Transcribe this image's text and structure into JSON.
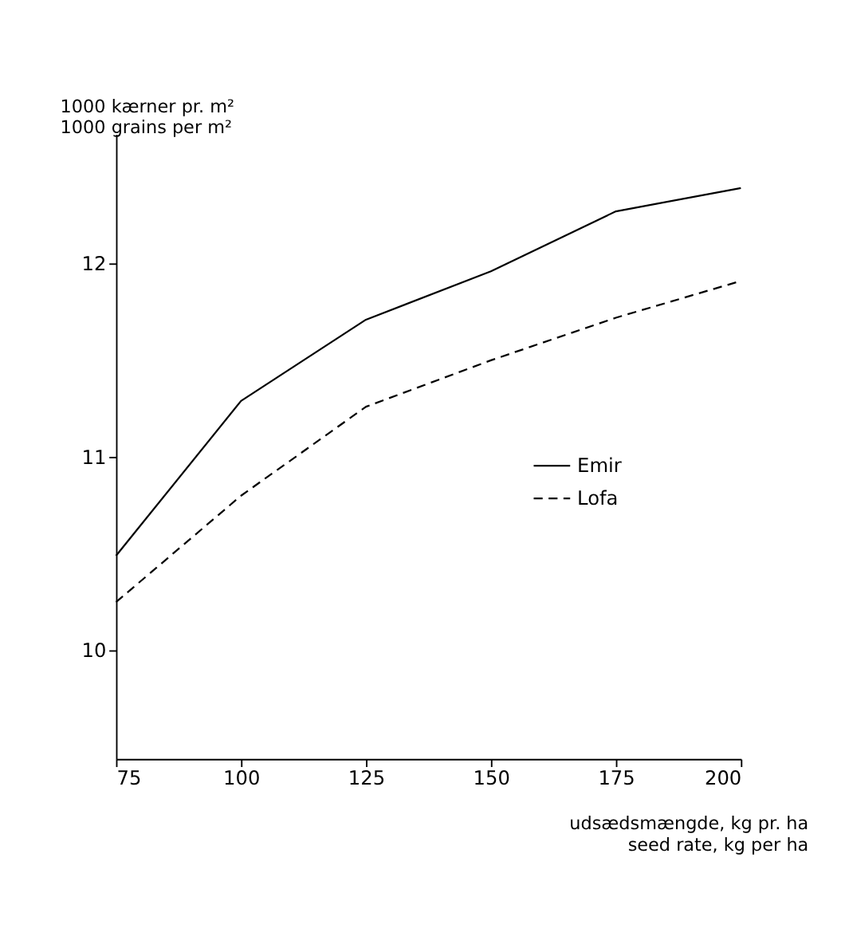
{
  "chart_data": {
    "type": "line",
    "categories": [
      "75",
      "100",
      "125",
      "150",
      "175",
      "200"
    ],
    "ylabel": "1000 kærner pr. m²\n1000 grains per m²",
    "xlabel": "udsædsmængde, kg pr. ha\nseed rate, kg per ha",
    "ylim": [
      9.44,
      12.67
    ],
    "yticks": [
      10,
      11,
      12
    ],
    "grid": false,
    "legend": "right",
    "marker": "none",
    "series": [
      {
        "name": "Emir",
        "color": "#000000",
        "line_style": "solid",
        "values": [
          10.49,
          11.29,
          11.71,
          11.96,
          12.27,
          12.39
        ]
      },
      {
        "name": "Lofa",
        "color": "#000000",
        "line_style": "dashed",
        "values": [
          10.25,
          10.8,
          11.26,
          11.5,
          11.72,
          11.91
        ]
      }
    ]
  }
}
